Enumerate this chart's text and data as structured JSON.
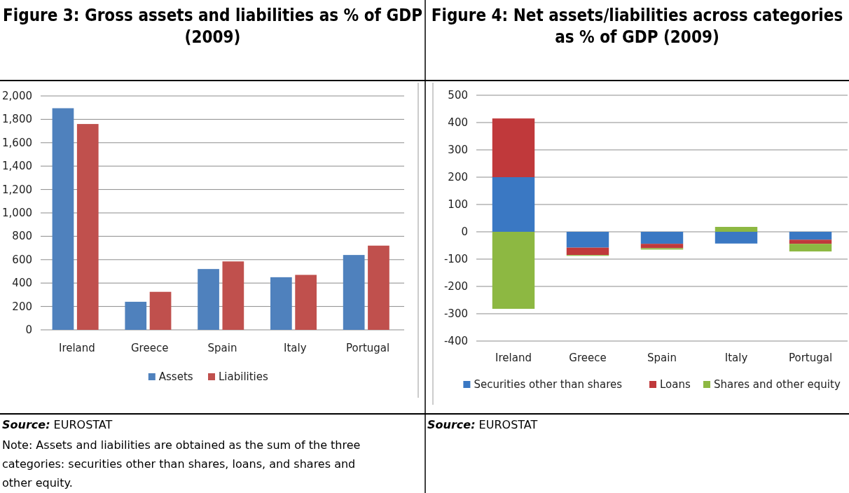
{
  "chart_data": [
    {
      "type": "bar",
      "title": "Figure 3: Gross assets and liabilities as % of GDP (2009)",
      "categories": [
        "Ireland",
        "Greece",
        "Spain",
        "Italy",
        "Portugal"
      ],
      "series": [
        {
          "name": "Assets",
          "color": "#4f81bd",
          "values": [
            1895,
            240,
            520,
            450,
            640
          ]
        },
        {
          "name": "Liabilities",
          "color": "#c0504d",
          "values": [
            1760,
            325,
            585,
            470,
            720
          ]
        }
      ],
      "ylim": [
        0,
        2000
      ],
      "yticks": [
        {
          "value": 0,
          "label": "0"
        },
        {
          "value": 200,
          "label": "200"
        },
        {
          "value": 400,
          "label": "400"
        },
        {
          "value": 600,
          "label": "600"
        },
        {
          "value": 800,
          "label": "800"
        },
        {
          "value": 1000,
          "label": "1,000"
        },
        {
          "value": 1200,
          "label": "1,200"
        },
        {
          "value": 1400,
          "label": "1,400"
        },
        {
          "value": 1600,
          "label": "1,600"
        },
        {
          "value": 1800,
          "label": "1,800"
        },
        {
          "value": 2000,
          "label": "2,000"
        }
      ],
      "grid": "y",
      "legend": "bottom",
      "annotations": [
        "Source: EUROSTAT",
        "Note: Assets and liabilities are obtained as the sum of the three categories: securities other than shares, loans, and shares and other equity."
      ]
    },
    {
      "type": "bar",
      "title": "Figure 4: Net assets/liabilities across categories as % of GDP (2009)",
      "categories": [
        "Ireland",
        "Greece",
        "Spain",
        "Italy",
        "Portugal"
      ],
      "stacked": true,
      "series": [
        {
          "name": "Securities other than shares",
          "color": "#3a78c3",
          "values": [
            200,
            -58,
            -44,
            -43,
            -29
          ]
        },
        {
          "name": "Loans",
          "color": "#c0393b",
          "values": [
            215,
            -27,
            -16,
            0,
            -15
          ]
        },
        {
          "name": "Shares and other equity",
          "color": "#8db842",
          "values": [
            -282,
            -3,
            -5,
            18,
            -28
          ]
        }
      ],
      "ylim": [
        -400,
        500
      ],
      "yticks": [
        -400,
        -300,
        -200,
        -100,
        0,
        100,
        200,
        300,
        400,
        500
      ],
      "grid": "y",
      "legend": "bottom",
      "annotations": [
        "Source: EUROSTAT"
      ]
    }
  ]
}
